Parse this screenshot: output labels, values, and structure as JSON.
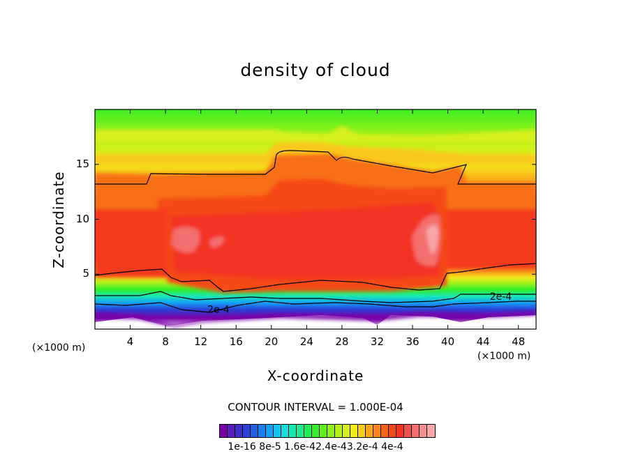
{
  "chart_data": {
    "type": "heatmap",
    "title": "density of cloud",
    "xlabel": "X-coordinate",
    "ylabel": "Z-coordinate",
    "x_unit_left": "(×1000 m)",
    "x_unit_right": "(×1000 m)",
    "xlim": [
      0,
      50
    ],
    "ylim": [
      0,
      20
    ],
    "x_ticks": [
      4,
      8,
      12,
      16,
      20,
      24,
      28,
      32,
      36,
      40,
      44,
      48
    ],
    "y_ticks": [
      5,
      10,
      15
    ],
    "contour_interval_text": "CONTOUR INTERVAL = 1.000E-04",
    "contour_labels": [
      {
        "text": "2e-4",
        "x": 14,
        "z": 1.8
      },
      {
        "text": "2e-4",
        "x": 46,
        "z": 3.0
      }
    ],
    "colorbar_labels_text": "1e-16 8e-5 1.6e-42.4e-43.2e-4 4e-4",
    "colorbar_colors": [
      "#7a00a8",
      "#5a1fb8",
      "#3c2ec8",
      "#2a44d8",
      "#1f5fe6",
      "#1a7ff0",
      "#14a0f6",
      "#14c4f4",
      "#16dedb",
      "#18e8b4",
      "#1cec8c",
      "#22ee5a",
      "#34ee28",
      "#62f01c",
      "#8ef21a",
      "#b6f21a",
      "#d8f01a",
      "#f2ec1a",
      "#f8cc1a",
      "#faa81a",
      "#fa8418",
      "#f86418",
      "#f54818",
      "#f23220",
      "#f2504a",
      "#f47070",
      "#f68e8e",
      "#f8a8a8"
    ],
    "grid": false
  }
}
